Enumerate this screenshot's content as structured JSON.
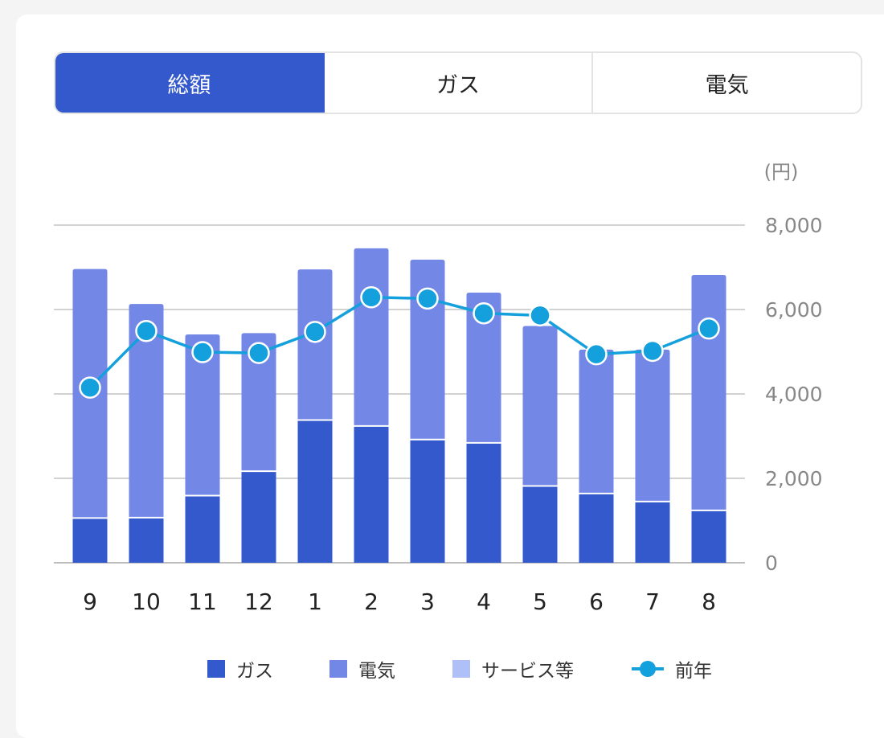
{
  "tabs": [
    {
      "label": "総額",
      "active": true
    },
    {
      "label": "ガス",
      "active": false
    },
    {
      "label": "電気",
      "active": false
    }
  ],
  "colors": {
    "gas": "#3359cc",
    "electric": "#7387e6",
    "service": "#aec0f7",
    "prev_year": "#14a0dc"
  },
  "chart_data": {
    "type": "bar",
    "stacked": true,
    "categories": [
      "9",
      "10",
      "11",
      "12",
      "1",
      "2",
      "3",
      "4",
      "5",
      "6",
      "7",
      "8"
    ],
    "series": [
      {
        "name": "ガス",
        "values": [
          1060,
          1070,
          1590,
          2170,
          3380,
          3240,
          2920,
          2840,
          1820,
          1640,
          1450,
          1240
        ]
      },
      {
        "name": "電気",
        "values": [
          5900,
          5060,
          3820,
          3270,
          3570,
          4210,
          4260,
          3560,
          3790,
          3410,
          3600,
          5580
        ]
      },
      {
        "name": "サービス等",
        "values": [
          0,
          0,
          0,
          0,
          0,
          0,
          0,
          0,
          0,
          0,
          0,
          0
        ]
      },
      {
        "name": "前年",
        "type": "line",
        "values": [
          4150,
          5490,
          4990,
          4970,
          5470,
          6290,
          6260,
          5910,
          5860,
          4940,
          5020,
          5550
        ]
      }
    ],
    "yunit": "(円)",
    "ylim": [
      0,
      8000
    ],
    "yticks": [
      "0",
      "2,000",
      "4,000",
      "6,000",
      "8,000"
    ],
    "grid": true,
    "legend_position": "bottom"
  }
}
